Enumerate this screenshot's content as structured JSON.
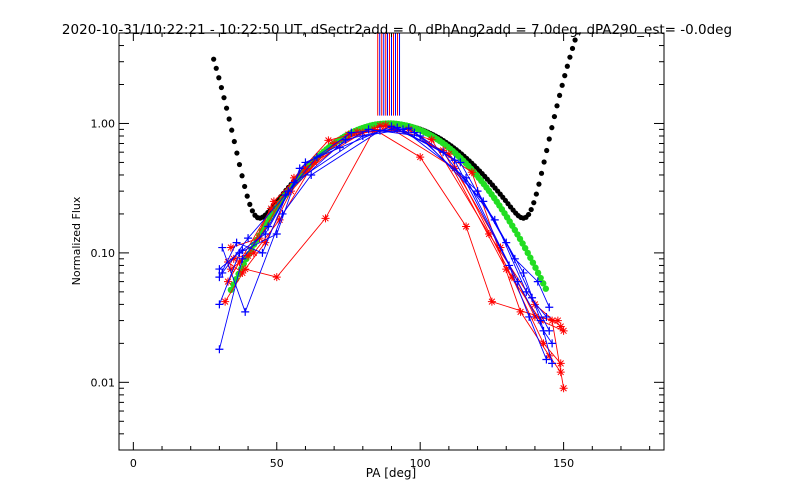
{
  "chart_data": {
    "type": "scatter",
    "title": "2020-10-31/10:22:21 - 10:22:50 UT, dSectr2add = 0, dPhAng2add = 7.0deg, dPA290_est= -0.0deg",
    "xlabel": "PA [deg]",
    "ylabel": "Normalized Flux",
    "xlim": [
      -5,
      185
    ],
    "ylim": [
      0.003,
      5
    ],
    "yscale": "log",
    "x_ticks": [
      0,
      50,
      100,
      150
    ],
    "x_tick_labels": [
      "0",
      "50",
      "100",
      "150"
    ],
    "y_ticks": [
      0.01,
      0.1,
      1.0
    ],
    "y_tick_labels": [
      "0.01",
      "0.10",
      "1.00"
    ],
    "grid": false,
    "legend": "none",
    "colors": {
      "red": "#ff0000",
      "blue": "#0000ff",
      "black": "#000000",
      "green": "#22dd22"
    },
    "vertical_markers": {
      "x": [
        85.2,
        85.9,
        86.6,
        87.3,
        88.0,
        88.6,
        89.3,
        90.0,
        90.7,
        91.4,
        92.1,
        92.8
      ],
      "colors": [
        "#ff0000",
        "#0000ff",
        "#ff0000",
        "#0000ff",
        "#ff0000",
        "#0000ff",
        "#ff0000",
        "#0000ff",
        "#ff0000",
        "#0000ff",
        "#ff0000",
        "#0000ff"
      ],
      "y_bottom": 1.15,
      "y_top": 5
    },
    "series": [
      {
        "kind": "black_fit",
        "color": "#000000",
        "curve": {
          "center": 90,
          "sigma": 23,
          "peak": 0.95,
          "floor": 0.04,
          "b": 20,
          "k": 0.09
        },
        "x_range": [
          28,
          160
        ]
      },
      {
        "kind": "green_fit",
        "color": "#22dd22",
        "curve": {
          "center": 89,
          "sigma": 22.6,
          "peak": 1.0
        },
        "x_range": [
          34,
          144
        ]
      },
      {
        "kind": "red",
        "color": "#ff0000",
        "marker": "star",
        "points": [
          [
            33,
            0.085
          ],
          [
            38,
            0.07
          ],
          [
            46,
            0.12
          ],
          [
            55,
            0.3
          ],
          [
            70,
            0.7
          ],
          [
            86,
            0.96
          ],
          [
            104,
            0.75
          ],
          [
            124,
            0.14
          ],
          [
            140,
            0.04
          ],
          [
            149,
            0.027
          ]
        ]
      },
      {
        "kind": "red",
        "color": "#ff0000",
        "marker": "star",
        "points": [
          [
            34,
            0.075
          ],
          [
            40,
            0.095
          ],
          [
            49,
            0.25
          ],
          [
            60,
            0.45
          ],
          [
            75,
            0.82
          ],
          [
            90,
            0.93
          ],
          [
            108,
            0.62
          ],
          [
            130,
            0.075
          ],
          [
            142,
            0.03
          ],
          [
            150,
            0.025
          ]
        ]
      },
      {
        "kind": "red",
        "color": "#ff0000",
        "marker": "star",
        "points": [
          [
            35,
            0.09
          ],
          [
            42,
            0.1
          ],
          [
            51,
            0.18
          ],
          [
            63,
            0.5
          ],
          [
            80,
            0.85
          ],
          [
            96,
            0.9
          ],
          [
            118,
            0.42
          ],
          [
            135,
            0.035
          ],
          [
            145,
            0.016
          ],
          [
            149,
            0.012
          ]
        ]
      },
      {
        "kind": "red",
        "color": "#ff0000",
        "marker": "star",
        "points": [
          [
            32,
            0.042
          ],
          [
            39,
            0.075
          ],
          [
            50,
            0.065
          ],
          [
            67,
            0.185
          ],
          [
            84,
            0.9
          ],
          [
            100,
            0.55
          ],
          [
            116,
            0.16
          ],
          [
            125,
            0.042
          ],
          [
            146,
            0.03
          ],
          [
            150,
            0.009
          ]
        ]
      },
      {
        "kind": "red",
        "color": "#ff0000",
        "marker": "star",
        "points": [
          [
            34,
            0.11
          ],
          [
            44,
            0.13
          ],
          [
            56,
            0.38
          ],
          [
            68,
            0.74
          ],
          [
            88,
            0.97
          ],
          [
            112,
            0.45
          ],
          [
            128,
            0.11
          ],
          [
            140,
            0.032
          ],
          [
            148,
            0.03
          ]
        ]
      },
      {
        "kind": "red",
        "color": "#ff0000",
        "marker": "star",
        "points": [
          [
            33,
            0.06
          ],
          [
            37,
            0.085
          ],
          [
            48,
            0.22
          ],
          [
            60,
            0.42
          ],
          [
            78,
            0.86
          ],
          [
            92,
            0.9
          ],
          [
            110,
            0.58
          ],
          [
            132,
            0.065
          ],
          [
            143,
            0.02
          ],
          [
            149,
            0.014
          ]
        ]
      },
      {
        "kind": "blue",
        "color": "#0000ff",
        "marker": "plus",
        "points": [
          [
            30,
            0.065
          ],
          [
            36,
            0.12
          ],
          [
            45,
            0.1
          ],
          [
            54,
            0.3
          ],
          [
            74,
            0.75
          ],
          [
            92,
            0.93
          ],
          [
            114,
            0.5
          ],
          [
            133,
            0.09
          ],
          [
            141,
            0.06
          ],
          [
            145,
            0.038
          ]
        ]
      },
      {
        "kind": "blue",
        "color": "#0000ff",
        "marker": "plus",
        "points": [
          [
            30,
            0.018
          ],
          [
            38,
            0.09
          ],
          [
            47,
            0.16
          ],
          [
            56,
            0.35
          ],
          [
            80,
            0.8
          ],
          [
            94,
            0.9
          ],
          [
            116,
            0.38
          ],
          [
            134,
            0.06
          ],
          [
            143,
            0.025
          ],
          [
            146,
            0.02
          ]
        ]
      },
      {
        "kind": "blue",
        "color": "#0000ff",
        "marker": "plus",
        "points": [
          [
            31,
            0.11
          ],
          [
            39,
            0.035
          ],
          [
            52,
            0.2
          ],
          [
            62,
            0.4
          ],
          [
            86,
            0.88
          ],
          [
            98,
            0.85
          ],
          [
            120,
            0.3
          ],
          [
            130,
            0.12
          ],
          [
            139,
            0.045
          ],
          [
            145,
            0.025
          ]
        ]
      },
      {
        "kind": "blue",
        "color": "#0000ff",
        "marker": "plus",
        "points": [
          [
            30,
            0.04
          ],
          [
            37,
            0.1
          ],
          [
            50,
            0.14
          ],
          [
            58,
            0.45
          ],
          [
            76,
            0.85
          ],
          [
            96,
            0.92
          ],
          [
            112,
            0.52
          ],
          [
            131,
            0.08
          ],
          [
            138,
            0.032
          ],
          [
            144,
            0.015
          ]
        ]
      },
      {
        "kind": "blue",
        "color": "#0000ff",
        "marker": "plus",
        "points": [
          [
            31,
            0.07
          ],
          [
            40,
            0.13
          ],
          [
            53,
            0.28
          ],
          [
            64,
            0.55
          ],
          [
            82,
            0.9
          ],
          [
            100,
            0.8
          ],
          [
            122,
            0.25
          ],
          [
            136,
            0.07
          ],
          [
            142,
            0.03
          ],
          [
            146,
            0.014
          ]
        ]
      },
      {
        "kind": "blue",
        "color": "#0000ff",
        "marker": "plus",
        "points": [
          [
            30,
            0.075
          ],
          [
            38,
            0.105
          ],
          [
            46,
            0.14
          ],
          [
            60,
            0.5
          ],
          [
            72,
            0.65
          ],
          [
            90,
            0.95
          ],
          [
            108,
            0.6
          ],
          [
            126,
            0.18
          ],
          [
            137,
            0.05
          ],
          [
            144,
            0.032
          ]
        ]
      }
    ]
  }
}
